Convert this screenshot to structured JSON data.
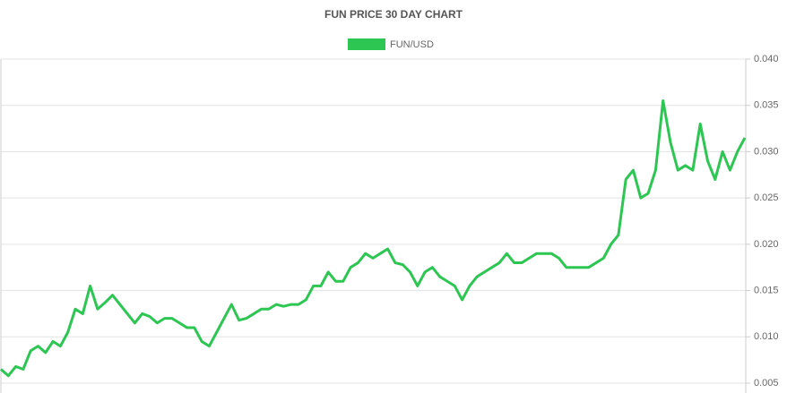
{
  "chart_data": {
    "type": "line",
    "title": "FUN PRICE 30 DAY CHART",
    "series": [
      {
        "name": "FUN/USD",
        "color": "#2dc653",
        "values": [
          0.0065,
          0.0058,
          0.0068,
          0.0065,
          0.0085,
          0.009,
          0.0083,
          0.0095,
          0.009,
          0.0105,
          0.013,
          0.0125,
          0.0155,
          0.013,
          0.0137,
          0.0145,
          0.0135,
          0.0125,
          0.0115,
          0.0125,
          0.0122,
          0.0115,
          0.012,
          0.012,
          0.0115,
          0.011,
          0.011,
          0.0095,
          0.009,
          0.0105,
          0.012,
          0.0135,
          0.0118,
          0.012,
          0.0125,
          0.013,
          0.013,
          0.0135,
          0.0133,
          0.0135,
          0.0135,
          0.014,
          0.0155,
          0.0155,
          0.017,
          0.016,
          0.016,
          0.0175,
          0.018,
          0.019,
          0.0185,
          0.019,
          0.0195,
          0.018,
          0.0178,
          0.017,
          0.0155,
          0.017,
          0.0175,
          0.0165,
          0.016,
          0.0155,
          0.014,
          0.0155,
          0.0165,
          0.017,
          0.0175,
          0.018,
          0.019,
          0.018,
          0.018,
          0.0185,
          0.019,
          0.019,
          0.019,
          0.0185,
          0.0175,
          0.0175,
          0.0175,
          0.0175,
          0.018,
          0.0185,
          0.02,
          0.021,
          0.027,
          0.028,
          0.025,
          0.0255,
          0.028,
          0.0355,
          0.031,
          0.028,
          0.0285,
          0.028,
          0.033,
          0.029,
          0.027,
          0.03,
          0.028,
          0.03,
          0.0315
        ]
      }
    ],
    "ylim": [
      0.005,
      0.04
    ],
    "yticks": [
      0.005,
      {
        "value": 0.01,
        "label": "0.010"
      },
      0.015,
      {
        "value": 0.02,
        "label": "0.020"
      },
      0.025,
      {
        "value": 0.03,
        "label": "0.030"
      },
      0.035,
      {
        "value": 0.04,
        "label": "0.040"
      }
    ],
    "grid": true
  }
}
